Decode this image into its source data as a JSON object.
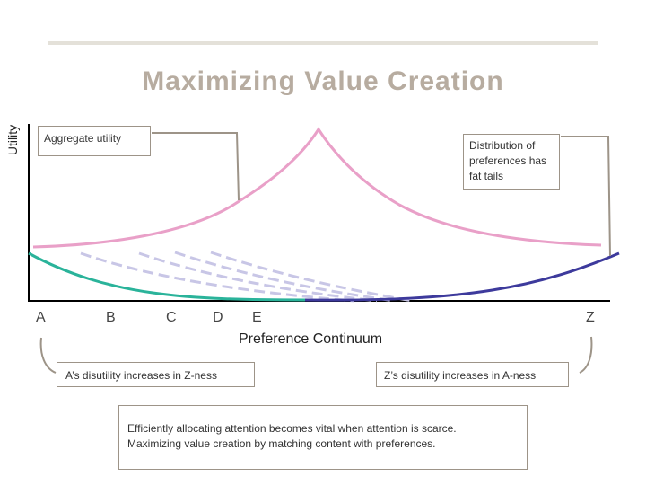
{
  "title": "Maximizing Value Creation",
  "y_axis_label": "Utility",
  "x_axis_label": "Preference Continuum",
  "points": [
    {
      "id": "A",
      "label": "A"
    },
    {
      "id": "B",
      "label": "B"
    },
    {
      "id": "C",
      "label": "C"
    },
    {
      "id": "D",
      "label": "D"
    },
    {
      "id": "E",
      "label": "E"
    },
    {
      "id": "Z",
      "label": "Z"
    }
  ],
  "callouts": {
    "aggregate": "Aggregate utility",
    "fat_tails": "Distribution of preferences has fat tails",
    "a_disutility": "A’s disutility increases in Z-ness",
    "z_disutility": "Z’s disutility increases in A-ness",
    "summary_line1": "Efficiently allocating attention becomes vital when attention is scarce.",
    "summary_line2": "Maximizing value creation by matching content with preferences."
  },
  "colors": {
    "aggregate_curve": "#e9a0c8",
    "a_curve": "#2ab39a",
    "z_curve": "#3d3a9c",
    "intermediate_curves": "#c8c6e6",
    "axis": "#000000",
    "connector": "#9d9488",
    "title": "#b7aca0"
  }
}
